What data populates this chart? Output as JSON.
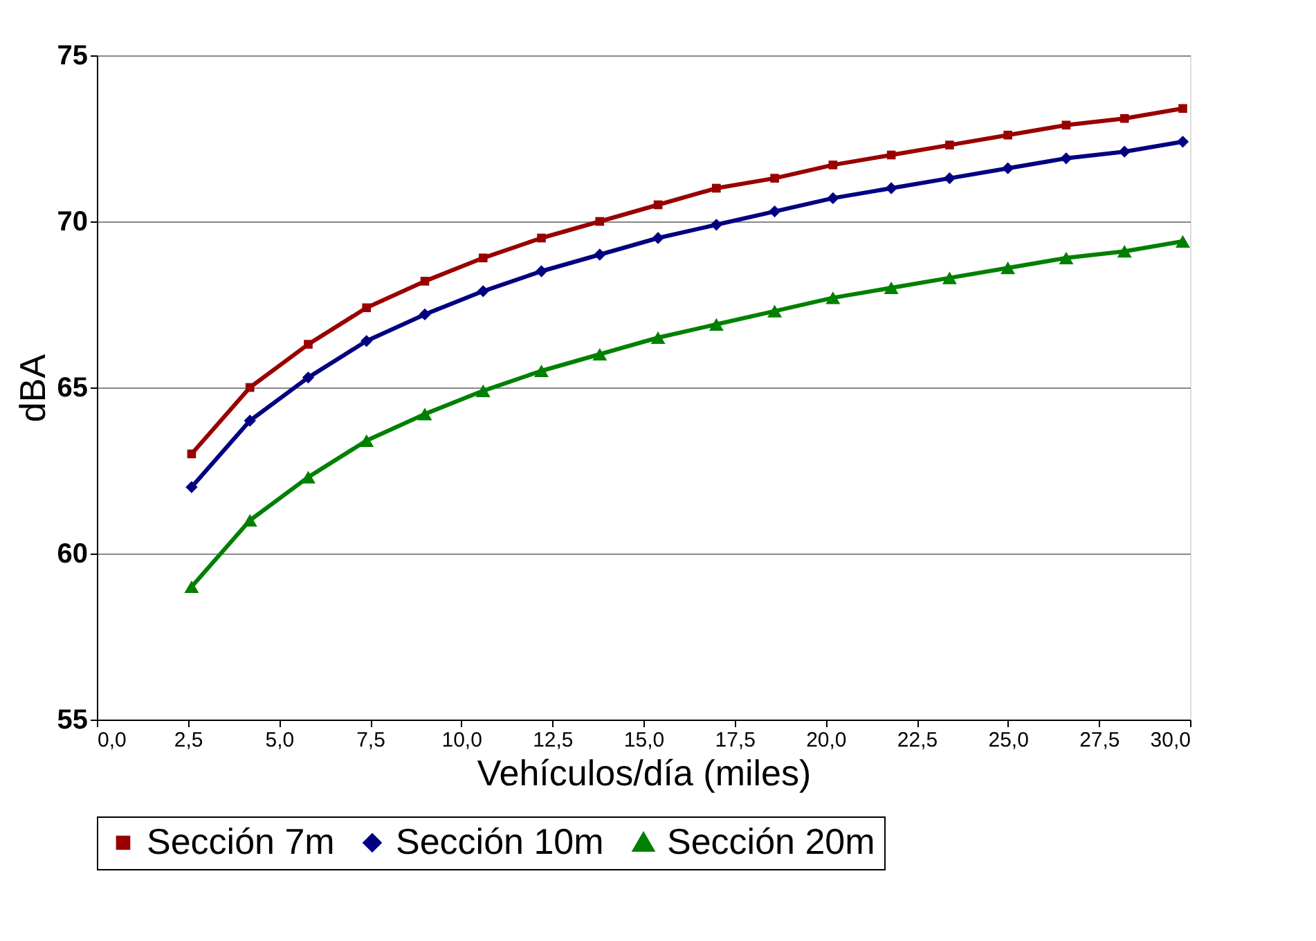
{
  "chart_data": {
    "type": "line",
    "xlabel": "Vehículos/día (miles)",
    "ylabel": "dBA",
    "x": [
      2.6,
      4.2,
      5.8,
      7.4,
      9.0,
      10.6,
      12.2,
      13.8,
      15.4,
      17.0,
      18.6,
      20.2,
      21.8,
      23.4,
      25.0,
      26.6,
      28.2,
      29.8
    ],
    "series": [
      {
        "name": "Sección 7m",
        "color": "#990000",
        "marker": "square",
        "values": [
          63.0,
          65.0,
          66.3,
          67.4,
          68.2,
          68.9,
          69.5,
          70.0,
          70.5,
          71.0,
          71.3,
          71.7,
          72.0,
          72.3,
          72.6,
          72.9,
          73.1,
          73.4
        ]
      },
      {
        "name": "Sección 10m",
        "color": "#000080",
        "marker": "diamond",
        "values": [
          62.0,
          64.0,
          65.3,
          66.4,
          67.2,
          67.9,
          68.5,
          69.0,
          69.5,
          69.9,
          70.3,
          70.7,
          71.0,
          71.3,
          71.6,
          71.9,
          72.1,
          72.4
        ]
      },
      {
        "name": "Sección 20m",
        "color": "#008000",
        "marker": "triangle",
        "values": [
          59.0,
          61.0,
          62.3,
          63.4,
          64.2,
          64.9,
          65.5,
          66.0,
          66.5,
          66.9,
          67.3,
          67.7,
          68.0,
          68.3,
          68.6,
          68.9,
          69.1,
          69.4
        ]
      }
    ],
    "xlim": [
      0,
      30
    ],
    "ylim": [
      55,
      75
    ],
    "xticks": [
      {
        "value": 0,
        "label": "0,0"
      },
      {
        "value": 2.5,
        "label": "2,5"
      },
      {
        "value": 5,
        "label": "5,0"
      },
      {
        "value": 7.5,
        "label": "7,5"
      },
      {
        "value": 10,
        "label": "10,0"
      },
      {
        "value": 12.5,
        "label": "12,5"
      },
      {
        "value": 15,
        "label": "15,0"
      },
      {
        "value": 17.5,
        "label": "17,5"
      },
      {
        "value": 20,
        "label": "20,0"
      },
      {
        "value": 22.5,
        "label": "22,5"
      },
      {
        "value": 25,
        "label": "25,0"
      },
      {
        "value": 27.5,
        "label": "27,5"
      },
      {
        "value": 30,
        "label": "30,0"
      }
    ],
    "yticks": [
      55,
      60,
      65,
      70,
      75
    ],
    "grid": "y",
    "legend": "bottom",
    "line_style": "solid"
  }
}
